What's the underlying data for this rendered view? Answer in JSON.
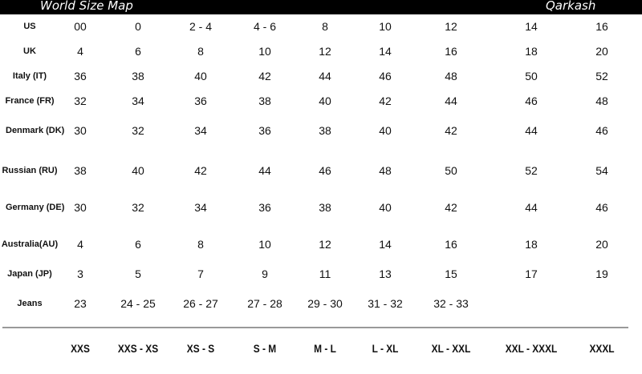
{
  "header": {
    "title": "World Size Map",
    "brand": "Qarkash"
  },
  "rows": [
    {
      "label": "US",
      "values": [
        "00",
        "0",
        "2 - 4",
        "4 - 6",
        "8",
        "10",
        "12",
        "14",
        "16"
      ]
    },
    {
      "label": "UK",
      "values": [
        "4",
        "6",
        "8",
        "10",
        "12",
        "14",
        "16",
        "18",
        "20"
      ]
    },
    {
      "label": "Italy (IT)",
      "values": [
        "36",
        "38",
        "40",
        "42",
        "44",
        "46",
        "48",
        "50",
        "52"
      ]
    },
    {
      "label": "France (FR)",
      "values": [
        "32",
        "34",
        "36",
        "38",
        "40",
        "42",
        "44",
        "46",
        "48"
      ]
    },
    {
      "label": "Denmark (DK)",
      "values": [
        "30",
        "32",
        "34",
        "36",
        "38",
        "40",
        "42",
        "44",
        "46"
      ]
    },
    {
      "label": "Russian (RU)",
      "values": [
        "38",
        "40",
        "42",
        "44",
        "46",
        "48",
        "50",
        "52",
        "54"
      ]
    },
    {
      "label": "Germany (DE)",
      "values": [
        "30",
        "32",
        "34",
        "36",
        "38",
        "40",
        "42",
        "44",
        "46"
      ]
    },
    {
      "label": "Australia(AU)",
      "values": [
        "4",
        "6",
        "8",
        "10",
        "12",
        "14",
        "16",
        "18",
        "20"
      ]
    },
    {
      "label": "Japan (JP)",
      "values": [
        "3",
        "5",
        "7",
        "9",
        "11",
        "13",
        "15",
        "17",
        "19"
      ]
    },
    {
      "label": "Jeans",
      "values": [
        "23",
        "24 - 25",
        "26 - 27",
        "27 - 28",
        "29 - 30",
        "31 - 32",
        "32 - 33",
        "",
        ""
      ]
    }
  ],
  "sizes": [
    "XXS",
    "XXS - XS",
    "XS - S",
    "S - M",
    "M - L",
    "L - XL",
    "XL - XXL",
    "XXL - XXXL",
    "XXXL"
  ]
}
